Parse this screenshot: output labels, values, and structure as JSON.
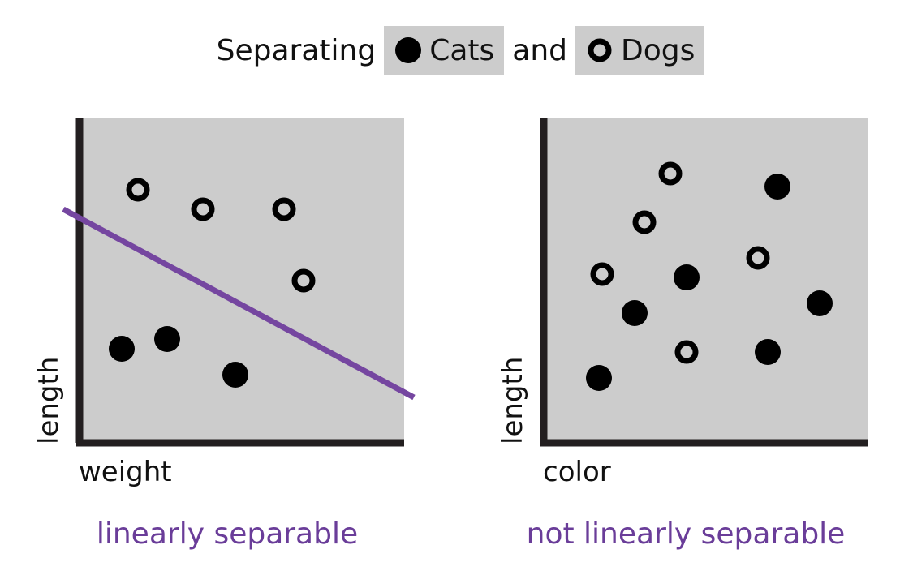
{
  "title": {
    "prefix": "Separating",
    "conjunction": "and",
    "classes": [
      {
        "label": "Cats",
        "marker": "filled-circle-icon"
      },
      {
        "label": "Dogs",
        "marker": "ring-icon"
      }
    ]
  },
  "colors": {
    "panel": "#cccccc",
    "axis": "#231f20",
    "marker": "#000000",
    "line": "#7546a0",
    "caption": "#6a3d99"
  },
  "chart_data": [
    {
      "type": "scatter",
      "xlabel": "weight",
      "ylabel": "length",
      "caption": "linearly separable",
      "xlim": [
        0,
        10
      ],
      "ylim": [
        0,
        10
      ],
      "grid": false,
      "series": [
        {
          "name": "Cats",
          "marker": "filled",
          "points": [
            [
              1.3,
              2.9
            ],
            [
              2.7,
              3.2
            ],
            [
              4.8,
              2.1
            ]
          ]
        },
        {
          "name": "Dogs",
          "marker": "ring",
          "points": [
            [
              1.8,
              7.8
            ],
            [
              3.8,
              7.2
            ],
            [
              6.3,
              7.2
            ],
            [
              6.9,
              5.0
            ]
          ]
        }
      ],
      "boundary": [
        [
          -0.5,
          7.2
        ],
        [
          10.3,
          1.4
        ]
      ]
    },
    {
      "type": "scatter",
      "xlabel": "color",
      "ylabel": "length",
      "caption": "not linearly separable",
      "xlim": [
        0,
        10
      ],
      "ylim": [
        0,
        10
      ],
      "grid": false,
      "series": [
        {
          "name": "Cats",
          "marker": "filled",
          "points": [
            [
              7.2,
              7.9
            ],
            [
              4.4,
              5.1
            ],
            [
              2.8,
              4.0
            ],
            [
              8.5,
              4.3
            ],
            [
              6.9,
              2.8
            ],
            [
              1.7,
              2.0
            ]
          ]
        },
        {
          "name": "Dogs",
          "marker": "ring",
          "points": [
            [
              3.9,
              8.3
            ],
            [
              3.1,
              6.8
            ],
            [
              1.8,
              5.2
            ],
            [
              6.6,
              5.7
            ],
            [
              4.4,
              2.8
            ]
          ]
        }
      ]
    }
  ]
}
